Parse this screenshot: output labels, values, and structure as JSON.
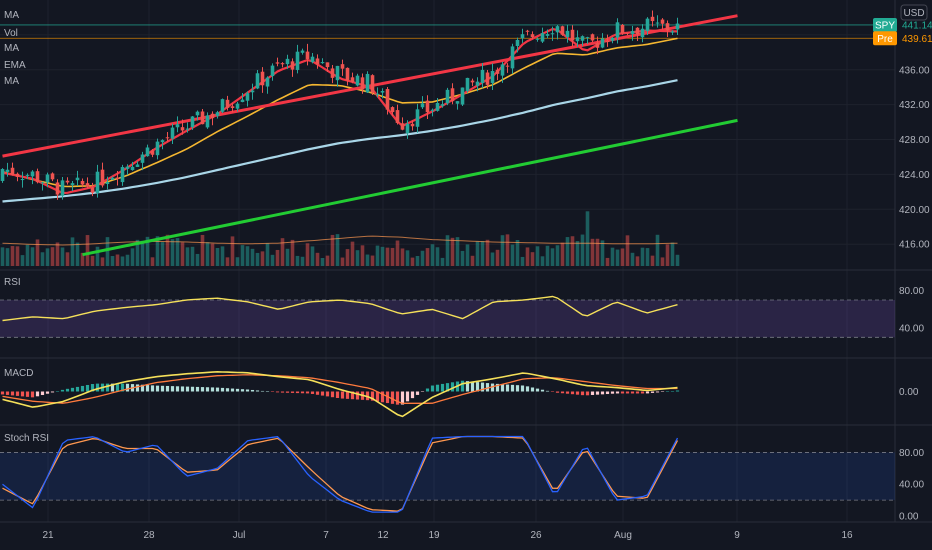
{
  "currency": "USD",
  "indicator_legend": [
    "MA",
    "Vol",
    "MA",
    "EMA",
    "MA"
  ],
  "price_tags": [
    {
      "label": "SPY",
      "value": "441.14",
      "color": "#22ab94"
    },
    {
      "label": "Pre",
      "value": "439.61",
      "color": "#ff9800"
    }
  ],
  "pane_labels": {
    "rsi": "RSI",
    "macd": "MACD",
    "stoch": "Stoch RSI"
  },
  "colors": {
    "background": "#131722",
    "up": "#26a69a",
    "down": "#ef5350",
    "resistance": "#f23645",
    "support": "#22cc33",
    "ma_fast": "#f23645",
    "ma_slow": "#f5b731",
    "ma_long": "#a9d6e8",
    "rsi": "#f5e05a",
    "macd": "#f5e05a",
    "signal": "#ff7a3d",
    "stoch_k": "#2962ff",
    "stoch_d": "#ff9850"
  },
  "chart_data": [
    {
      "type": "candlestick",
      "pane": "price",
      "ticker": "SPY",
      "x_labels": [
        "21",
        "28",
        "Jul",
        "7",
        "12",
        "19",
        "26",
        "Aug",
        "9",
        "16"
      ],
      "y_ticks": [
        "416.00",
        "420.00",
        "424.00",
        "428.00",
        "432.00",
        "436.00"
      ],
      "ylim": [
        413.5,
        444
      ],
      "last_close": 441.14,
      "premarket": 439.61,
      "trendlines": [
        {
          "name": "resistance",
          "from": [
            0,
            426.1
          ],
          "to": [
            135,
            442.2
          ]
        },
        {
          "name": "support",
          "from": [
            16,
            414.8
          ],
          "to": [
            135,
            430.2
          ]
        }
      ],
      "moving_averages": [
        {
          "name": "ma_fast",
          "values": [
            424.2,
            423.5,
            421.8,
            422.6,
            424.6,
            427.0,
            429.0,
            430.9,
            433.4,
            435.9,
            437.2,
            435.0,
            434.0,
            429.5,
            431.2,
            433.2,
            435.3,
            439.1,
            440.8,
            438.1,
            440.1,
            440.5,
            440.4
          ]
        },
        {
          "name": "ma_slow",
          "values": [
            424.3,
            423.4,
            422.6,
            422.7,
            423.8,
            425.3,
            426.9,
            428.9,
            430.7,
            432.6,
            434.3,
            434.2,
            433.4,
            432.2,
            432.3,
            433.2,
            434.3,
            436.2,
            437.9,
            437.7,
            438.5,
            438.9,
            439.6
          ]
        },
        {
          "name": "ma_long",
          "values": [
            420.9,
            421.2,
            421.5,
            421.9,
            422.4,
            423.0,
            423.7,
            424.5,
            425.3,
            426.1,
            426.9,
            427.6,
            428.1,
            428.5,
            429.0,
            429.6,
            430.3,
            431.1,
            432.0,
            432.7,
            433.5,
            434.1,
            434.8
          ]
        }
      ],
      "volume_ma": [
        0.38,
        0.36,
        0.35,
        0.37,
        0.4,
        0.41,
        0.4,
        0.38,
        0.37,
        0.38,
        0.42,
        0.46,
        0.5,
        0.48,
        0.44,
        0.42,
        0.4,
        0.39,
        0.38,
        0.38,
        0.37,
        0.37,
        0.38
      ]
    },
    {
      "type": "line",
      "pane": "rsi",
      "y_ticks": [
        "40.00",
        "80.00"
      ],
      "ylim": [
        10,
        100
      ],
      "band": [
        30,
        70
      ],
      "values": [
        48,
        52,
        50,
        58,
        62,
        65,
        70,
        72,
        68,
        60,
        68,
        70,
        66,
        55,
        60,
        50,
        68,
        70,
        74,
        52,
        68,
        56,
        65
      ]
    },
    {
      "type": "line",
      "pane": "macd",
      "y_ticks": [
        "0.00"
      ],
      "ylim": [
        -3.2,
        3.2
      ],
      "series": [
        {
          "name": "macd",
          "values": [
            -0.8,
            -1.6,
            -1.0,
            0.2,
            1.0,
            1.5,
            1.8,
            2.0,
            1.9,
            1.5,
            1.2,
            0.2,
            -0.6,
            -2.6,
            -0.6,
            0.8,
            1.3,
            1.9,
            1.3,
            0.6,
            0.4,
            0.1,
            0.4
          ]
        },
        {
          "name": "signal",
          "values": [
            -0.5,
            -1.0,
            -1.2,
            -0.6,
            0.2,
            0.9,
            1.3,
            1.6,
            1.7,
            1.6,
            1.4,
            0.9,
            0.3,
            -1.2,
            -1.2,
            -0.3,
            0.5,
            1.3,
            1.4,
            1.0,
            0.6,
            0.3,
            0.3
          ]
        }
      ]
    },
    {
      "type": "line",
      "pane": "stoch",
      "y_ticks": [
        "0.00",
        "40.00",
        "80.00"
      ],
      "ylim": [
        -5,
        112
      ],
      "band": [
        20,
        80
      ],
      "series": [
        {
          "name": "k",
          "values": [
            40,
            10,
            95,
            100,
            80,
            90,
            50,
            60,
            95,
            100,
            50,
            20,
            5,
            5,
            98,
            100,
            100,
            100,
            25,
            90,
            20,
            25,
            98
          ]
        },
        {
          "name": "d",
          "values": [
            35,
            15,
            88,
            98,
            85,
            85,
            55,
            58,
            90,
            98,
            60,
            25,
            8,
            6,
            92,
            100,
            100,
            98,
            30,
            85,
            25,
            22,
            95
          ]
        }
      ]
    }
  ]
}
